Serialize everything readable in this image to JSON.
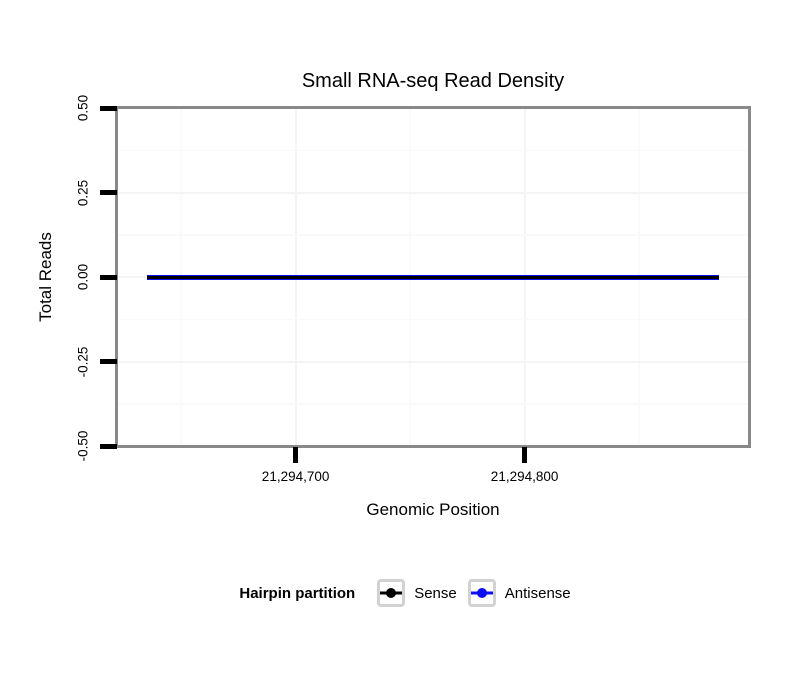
{
  "figure": {
    "title": "Small RNA-seq Read Density",
    "xlabel": "Genomic Position",
    "ylabel": "Total Reads"
  },
  "legend": {
    "title": "Hairpin partition",
    "entries": [
      {
        "label": "Sense",
        "color": "#000000"
      },
      {
        "label": "Antisense",
        "color": "#0d0df2"
      }
    ]
  },
  "chart_data": {
    "type": "line",
    "title": "Small RNA-seq Read Density",
    "xlabel": "Genomic Position",
    "ylabel": "Total Reads",
    "xlim": [
      21294622,
      21294898
    ],
    "ylim": [
      -0.5,
      0.5
    ],
    "xticks": [
      {
        "value": 21294700,
        "label": "21,294,700"
      },
      {
        "value": 21294800,
        "label": "21,294,800"
      }
    ],
    "yticks": [
      {
        "value": 0.5,
        "label": "0.50"
      },
      {
        "value": 0.25,
        "label": "0.25"
      },
      {
        "value": 0.0,
        "label": "0.00"
      },
      {
        "value": -0.25,
        "label": "-0.25"
      },
      {
        "value": -0.5,
        "label": "-0.50"
      }
    ],
    "grid": true,
    "legend_position": "bottom",
    "series": [
      {
        "name": "Sense",
        "color": "#000000",
        "x": [
          21294635,
          21294885
        ],
        "y": [
          0,
          0
        ]
      },
      {
        "name": "Antisense",
        "color": "#0d0df2",
        "x": [
          21294635,
          21294885
        ],
        "y": [
          0,
          0
        ]
      }
    ]
  }
}
